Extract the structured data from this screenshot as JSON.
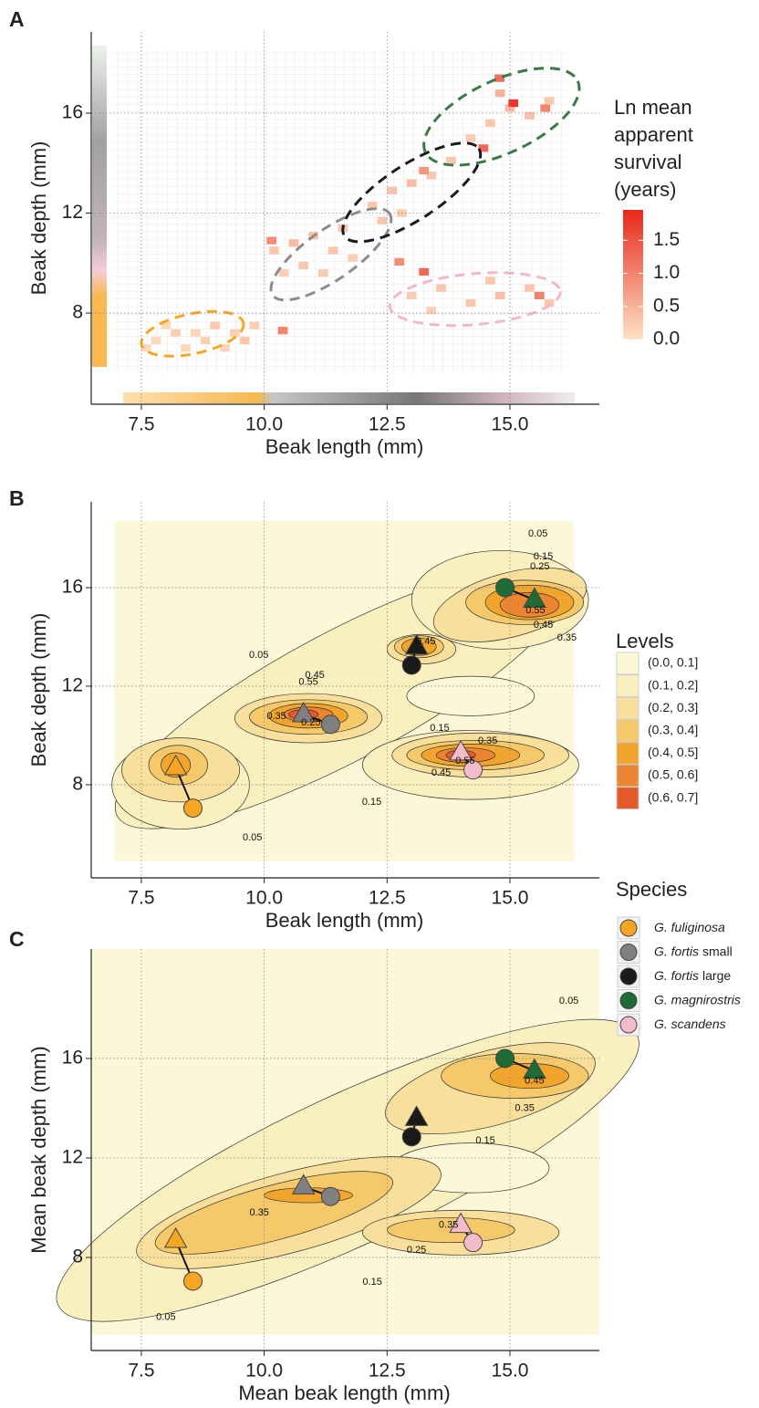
{
  "chart_data": [
    {
      "type": "heatmap",
      "panel": "A",
      "xlabel": "Beak length (mm)",
      "ylabel": "Beak depth (mm)",
      "xlim": [
        6.48,
        16.82
      ],
      "ylim": [
        4.35,
        19.25
      ],
      "xticks": [
        7.5,
        {
          "value": 10,
          "label": "10.0"
        },
        12.5,
        {
          "value": 15,
          "label": "15.0"
        }
      ],
      "yticks": [
        8,
        12,
        16
      ],
      "grid": true,
      "bin_width": [
        0.2,
        0.3
      ],
      "cells": [
        [
          7.8,
          6.9,
          0.1
        ],
        [
          8.2,
          7.2,
          0.2
        ],
        [
          8.6,
          7.2,
          0.15
        ],
        [
          9.0,
          7.5,
          0.25
        ],
        [
          9.4,
          7.2,
          0.2
        ],
        [
          7.6,
          6.6,
          0.1
        ],
        [
          8.4,
          6.6,
          0.1
        ],
        [
          8.8,
          6.9,
          0.2
        ],
        [
          9.6,
          6.9,
          0.3
        ],
        [
          9.2,
          6.6,
          0.15
        ],
        [
          9.8,
          7.5,
          0.2
        ],
        [
          8.0,
          7.5,
          0.1
        ],
        [
          10.2,
          10.5,
          0.3
        ],
        [
          10.6,
          10.8,
          0.4
        ],
        [
          11.0,
          11.1,
          0.35
        ],
        [
          11.4,
          10.5,
          0.3
        ],
        [
          10.8,
          9.9,
          0.3
        ],
        [
          11.2,
          9.6,
          0.25
        ],
        [
          10.4,
          9.6,
          0.2
        ],
        [
          11.6,
          11.4,
          0.3
        ],
        [
          11.8,
          10.2,
          0.2
        ],
        [
          10.15,
          10.9,
          0.9
        ],
        [
          10.38,
          7.3,
          1.0
        ],
        [
          12.2,
          12.3,
          0.3
        ],
        [
          12.6,
          12.9,
          0.35
        ],
        [
          13.0,
          13.2,
          0.4
        ],
        [
          13.4,
          13.5,
          0.3
        ],
        [
          12.4,
          11.7,
          0.3
        ],
        [
          13.8,
          14.1,
          0.3
        ],
        [
          12.8,
          12.0,
          0.25
        ],
        [
          13.25,
          13.7,
          0.8
        ],
        [
          12.75,
          10.05,
          0.9
        ],
        [
          14.6,
          15.6,
          0.3
        ],
        [
          15.0,
          16.2,
          0.4
        ],
        [
          15.4,
          15.9,
          0.35
        ],
        [
          15.8,
          16.5,
          0.3
        ],
        [
          14.2,
          15.0,
          0.25
        ],
        [
          15.07,
          16.4,
          1.8
        ],
        [
          14.79,
          17.4,
          1.2
        ],
        [
          15.72,
          16.2,
          1.0
        ],
        [
          14.46,
          14.6,
          1.3
        ],
        [
          14.8,
          16.8,
          0.5
        ],
        [
          13.0,
          8.7,
          0.25
        ],
        [
          13.6,
          9.0,
          0.3
        ],
        [
          14.2,
          8.4,
          0.3
        ],
        [
          14.8,
          8.7,
          0.35
        ],
        [
          15.4,
          9.0,
          0.3
        ],
        [
          15.8,
          8.4,
          0.25
        ],
        [
          13.4,
          8.1,
          0.2
        ],
        [
          14.6,
          9.3,
          0.3
        ],
        [
          13.25,
          9.65,
          1.3
        ],
        [
          15.6,
          8.7,
          1.0
        ]
      ],
      "ellipses": [
        {
          "color": "#f6a623",
          "cx": 8.54,
          "cy": 7.17,
          "rx": 1.06,
          "ry": 0.8,
          "angle": -12
        },
        {
          "color": "#8c8c8c",
          "cx": 11.36,
          "cy": 10.35,
          "rx": 1.45,
          "ry": 1.0,
          "angle": -35
        },
        {
          "color": "#1a1a1a",
          "cx": 13.0,
          "cy": 12.83,
          "rx": 1.63,
          "ry": 1.1,
          "angle": -33
        },
        {
          "color": "#3a7a45",
          "cx": 14.83,
          "cy": 15.86,
          "rx": 1.71,
          "ry": 1.46,
          "angle": -25
        },
        {
          "color": "#f2b8c6",
          "cx": 14.29,
          "cy": 8.56,
          "rx": 1.74,
          "ry": 1.02,
          "angle": -5
        }
      ],
      "colorbar": {
        "title": "Ln mean apparent survival (years)",
        "lim": [
          0,
          1.96
        ],
        "ticks": [
          {
            "value": 0,
            "label": "0.0"
          },
          0.5,
          {
            "value": 1,
            "label": "1.0"
          },
          1.5
        ],
        "colors": [
          "#fde2c6",
          "#e8281b"
        ]
      }
    },
    {
      "type": "contour",
      "panel": "B",
      "xlabel": "Beak length (mm)",
      "ylabel": "Beak depth (mm)",
      "xlim": [
        6.48,
        16.82
      ],
      "ylim": [
        4.22,
        19.48
      ],
      "xticks": [
        7.5,
        {
          "value": 10,
          "label": "10.0"
        },
        12.5,
        {
          "value": 15,
          "label": "15.0"
        }
      ],
      "yticks": [
        8,
        12,
        16
      ],
      "grid": true,
      "fill_extent": {
        "x": [
          6.95,
          16.3
        ],
        "y": [
          4.9,
          18.7
        ]
      },
      "regions": [
        {
          "level": 1,
          "cx": 11.6,
          "cy": 11.6,
          "rx": 5.2,
          "ry": 2.6,
          "angle": -28
        },
        {
          "level": 1,
          "cx": 8.3,
          "cy": 8.0,
          "rx": 1.4,
          "ry": 1.8,
          "angle": 0
        },
        {
          "level": 1,
          "cx": 14.2,
          "cy": 8.8,
          "rx": 2.2,
          "ry": 1.4,
          "angle": 0
        },
        {
          "level": 1,
          "cx": 14.8,
          "cy": 15.5,
          "rx": 1.8,
          "ry": 2.0,
          "angle": 0
        },
        {
          "level": 0,
          "cx": 14.2,
          "cy": 11.6,
          "rx": 1.3,
          "ry": 0.8,
          "angle": 0
        },
        {
          "level": 2,
          "cx": 8.3,
          "cy": 8.6,
          "rx": 1.2,
          "ry": 1.3,
          "angle": 0
        },
        {
          "level": 2,
          "cx": 10.9,
          "cy": 10.7,
          "rx": 1.5,
          "ry": 1.0,
          "angle": 0
        },
        {
          "level": 2,
          "cx": 14.4,
          "cy": 9.2,
          "rx": 1.8,
          "ry": 0.9,
          "angle": 0
        },
        {
          "level": 2,
          "cx": 15.0,
          "cy": 15.3,
          "rx": 1.6,
          "ry": 1.3,
          "angle": -15
        },
        {
          "level": 2,
          "cx": 13.2,
          "cy": 13.5,
          "rx": 0.7,
          "ry": 0.6,
          "angle": 0
        },
        {
          "level": 3,
          "cx": 8.25,
          "cy": 8.8,
          "rx": 0.6,
          "ry": 0.8,
          "angle": 0
        },
        {
          "level": 3,
          "cx": 10.9,
          "cy": 10.75,
          "rx": 1.2,
          "ry": 0.7,
          "angle": 0
        },
        {
          "level": 3,
          "cx": 14.3,
          "cy": 9.2,
          "rx": 1.4,
          "ry": 0.6,
          "angle": 0
        },
        {
          "level": 3,
          "cx": 15.3,
          "cy": 15.4,
          "rx": 1.2,
          "ry": 0.9,
          "angle": 0
        },
        {
          "level": 3,
          "cx": 13.15,
          "cy": 13.6,
          "rx": 0.5,
          "ry": 0.45,
          "angle": 0
        },
        {
          "level": 4,
          "cx": 8.2,
          "cy": 8.8,
          "rx": 0.3,
          "ry": 0.5,
          "angle": 0
        },
        {
          "level": 4,
          "cx": 10.9,
          "cy": 10.8,
          "rx": 0.8,
          "ry": 0.5,
          "angle": 0
        },
        {
          "level": 4,
          "cx": 14.2,
          "cy": 9.2,
          "rx": 1.0,
          "ry": 0.45,
          "angle": 0
        },
        {
          "level": 4,
          "cx": 15.4,
          "cy": 15.4,
          "rx": 0.9,
          "ry": 0.7,
          "angle": 0
        },
        {
          "level": 4,
          "cx": 13.15,
          "cy": 13.6,
          "rx": 0.35,
          "ry": 0.35,
          "angle": 0
        },
        {
          "level": 5,
          "cx": 10.9,
          "cy": 10.85,
          "rx": 0.5,
          "ry": 0.3,
          "angle": 0
        },
        {
          "level": 5,
          "cx": 14.1,
          "cy": 9.2,
          "rx": 0.6,
          "ry": 0.3,
          "angle": 0
        },
        {
          "level": 5,
          "cx": 15.4,
          "cy": 15.3,
          "rx": 0.6,
          "ry": 0.5,
          "angle": 0
        },
        {
          "level": 6,
          "cx": 10.8,
          "cy": 10.85,
          "rx": 0.3,
          "ry": 0.2,
          "angle": 0
        },
        {
          "level": 6,
          "cx": 14.0,
          "cy": 9.2,
          "rx": 0.3,
          "ry": 0.2,
          "angle": 0
        }
      ],
      "means": [
        {
          "circle": [
            8.55,
            7.05
          ],
          "triangle": [
            8.2,
            8.7
          ]
        },
        {
          "circle": [
            11.35,
            10.45
          ],
          "triangle": [
            10.8,
            10.85
          ]
        },
        {
          "circle": [
            13.0,
            12.85
          ],
          "triangle": [
            13.1,
            13.6
          ]
        },
        {
          "circle": [
            14.9,
            16.0
          ],
          "triangle": [
            15.5,
            15.5
          ]
        },
        {
          "circle": [
            14.25,
            8.6
          ],
          "triangle": [
            14.0,
            9.3
          ]
        }
      ],
      "contour_labels": [
        {
          "value": 0.05,
          "x": 15.57,
          "y": 18.18
        },
        {
          "value": 0.15,
          "x": 15.68,
          "y": 17.26
        },
        {
          "value": 0.25,
          "x": 15.61,
          "y": 16.85
        },
        {
          "value": 0.55,
          "x": 15.52,
          "y": 15.07
        },
        {
          "value": 0.45,
          "x": 15.68,
          "y": 14.48
        },
        {
          "value": 0.35,
          "x": 16.16,
          "y": 13.96
        },
        {
          "value": 0.05,
          "x": 9.89,
          "y": 13.26
        },
        {
          "value": 0.45,
          "x": 13.29,
          "y": 13.81
        },
        {
          "value": 0.45,
          "x": 11.03,
          "y": 12.43
        },
        {
          "value": 0.55,
          "x": 10.9,
          "y": 12.17
        },
        {
          "value": 0.35,
          "x": 10.25,
          "y": 10.77
        },
        {
          "value": 0.25,
          "x": 10.95,
          "y": 10.51
        },
        {
          "value": 0.15,
          "x": 13.57,
          "y": 10.29
        },
        {
          "value": 0.35,
          "x": 14.55,
          "y": 9.77
        },
        {
          "value": 0.55,
          "x": 14.09,
          "y": 8.95
        },
        {
          "value": 0.45,
          "x": 13.6,
          "y": 8.47
        },
        {
          "value": 0.15,
          "x": 12.19,
          "y": 7.29
        },
        {
          "value": 0.05,
          "x": 9.76,
          "y": 5.84
        }
      ],
      "level_legend": {
        "title": "Levels",
        "labels": [
          "(0.0, 0.1]",
          "(0.1, 0.2]",
          "(0.2, 0.3]",
          "(0.3, 0.4]",
          "(0.4, 0.5]",
          "(0.5, 0.6]",
          "(0.6, 0.7]"
        ],
        "colors": [
          "#fcf7d6",
          "#faefbf",
          "#f8df9b",
          "#f5c96a",
          "#f2a52c",
          "#ec8531",
          "#e6592b"
        ]
      },
      "species_legend": {
        "title": "Species",
        "items": [
          {
            "name": "G. fuliginosa",
            "color": "#f6a623"
          },
          {
            "name": "G. fortis",
            "qualifier": "small",
            "color": "#808080"
          },
          {
            "name": "G. fortis",
            "qualifier": "large",
            "color": "#1a1a1a"
          },
          {
            "name": "G. magnirostris",
            "color": "#1e6b35"
          },
          {
            "name": "G. scandens",
            "color": "#f4bccb"
          }
        ]
      }
    },
    {
      "type": "contour",
      "panel": "C",
      "xlabel": "Mean beak length (mm)",
      "ylabel": "Mean beak depth (mm)",
      "xlim": [
        6.48,
        16.82
      ],
      "ylim": [
        4.26,
        20.4
      ],
      "xticks": [
        7.5,
        {
          "value": 10,
          "label": "10.0"
        },
        12.5,
        {
          "value": 15,
          "label": "15.0"
        }
      ],
      "yticks": [
        8,
        12,
        16
      ],
      "grid": true,
      "fill_extent": {
        "x": [
          6.48,
          16.82
        ],
        "y": [
          4.9,
          20.4
        ]
      },
      "regions": [
        {
          "level": 1,
          "cx": 11.7,
          "cy": 11.5,
          "rx": 6.5,
          "ry": 3.0,
          "angle": -25
        },
        {
          "level": 0,
          "cx": 14.2,
          "cy": 11.6,
          "rx": 1.6,
          "ry": 1.0,
          "angle": 0
        },
        {
          "level": 2,
          "cx": 10.5,
          "cy": 9.8,
          "rx": 3.2,
          "ry": 1.6,
          "angle": -15
        },
        {
          "level": 2,
          "cx": 14.6,
          "cy": 14.8,
          "rx": 2.2,
          "ry": 1.5,
          "angle": -15
        },
        {
          "level": 2,
          "cx": 14.0,
          "cy": 9.0,
          "rx": 2.0,
          "ry": 0.9,
          "angle": 0
        },
        {
          "level": 3,
          "cx": 10.2,
          "cy": 9.8,
          "rx": 2.5,
          "ry": 1.1,
          "angle": -15
        },
        {
          "level": 3,
          "cx": 15.1,
          "cy": 15.3,
          "rx": 1.5,
          "ry": 0.9,
          "angle": 0
        },
        {
          "level": 3,
          "cx": 13.8,
          "cy": 9.1,
          "rx": 1.3,
          "ry": 0.5,
          "angle": 0
        },
        {
          "level": 4,
          "cx": 10.9,
          "cy": 10.5,
          "rx": 0.9,
          "ry": 0.3,
          "angle": 0
        },
        {
          "level": 4,
          "cx": 15.4,
          "cy": 15.3,
          "rx": 0.8,
          "ry": 0.5,
          "angle": 0
        }
      ],
      "means": [
        {
          "circle": [
            8.55,
            7.05
          ],
          "triangle": [
            8.2,
            8.7
          ]
        },
        {
          "circle": [
            11.35,
            10.45
          ],
          "triangle": [
            10.8,
            10.85
          ]
        },
        {
          "circle": [
            13.0,
            12.85
          ],
          "triangle": [
            13.1,
            13.6
          ]
        },
        {
          "circle": [
            14.9,
            16.0
          ],
          "triangle": [
            15.5,
            15.5
          ]
        },
        {
          "circle": [
            14.25,
            8.6
          ],
          "triangle": [
            14.0,
            9.3
          ]
        }
      ],
      "contour_labels": [
        {
          "value": 0.05,
          "x": 16.2,
          "y": 18.3
        },
        {
          "value": 0.45,
          "x": 15.5,
          "y": 15.1
        },
        {
          "value": 0.35,
          "x": 15.3,
          "y": 14.0
        },
        {
          "value": 0.15,
          "x": 14.5,
          "y": 12.7
        },
        {
          "value": 0.35,
          "x": 9.9,
          "y": 9.8
        },
        {
          "value": 0.35,
          "x": 13.75,
          "y": 9.3
        },
        {
          "value": 0.25,
          "x": 13.1,
          "y": 8.3
        },
        {
          "value": 0.15,
          "x": 12.2,
          "y": 7.0
        },
        {
          "value": 0.05,
          "x": 8.0,
          "y": 5.6
        }
      ]
    }
  ]
}
